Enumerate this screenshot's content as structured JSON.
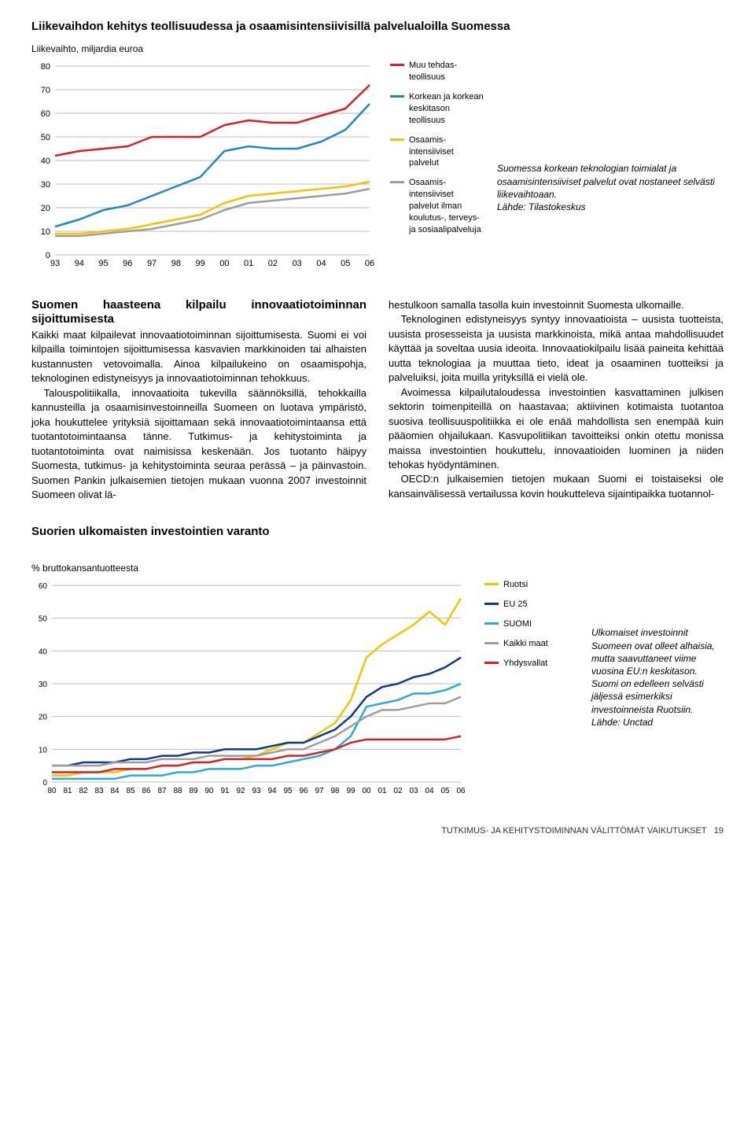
{
  "chart1": {
    "title": "Liikevaihdon kehitys teollisuudessa ja osaamisintensiivisillä palvelualoilla Suomessa",
    "subtitle": "Liikevaihto, miljardia euroa",
    "type": "line",
    "ylim": [
      0,
      80
    ],
    "ytick_step": 10,
    "categories": [
      "93",
      "94",
      "95",
      "96",
      "97",
      "98",
      "99",
      "00",
      "01",
      "02",
      "03",
      "04",
      "05",
      "06"
    ],
    "background_color": "#ffffff",
    "grid_color": "#bdbdbd",
    "axis_fontsize": 11,
    "line_width": 2.5,
    "series": [
      {
        "name": "Muu tehdasteollisuus",
        "color": "#d61f26",
        "values": [
          42,
          44,
          45,
          46,
          50,
          50,
          50,
          55,
          57,
          56,
          56,
          59,
          62,
          72
        ]
      },
      {
        "name": "Korkean ja korkean keskitason teollisuus",
        "color": "#1e88c7",
        "values": [
          12,
          15,
          19,
          21,
          25,
          29,
          33,
          44,
          46,
          45,
          45,
          48,
          53,
          64
        ]
      },
      {
        "name": "Osaamisintensiiviset palvelut",
        "color": "#f4c400",
        "values": [
          9,
          9,
          10,
          11,
          13,
          15,
          17,
          22,
          25,
          26,
          27,
          28,
          29,
          31
        ]
      },
      {
        "name": "Osaamisintensiiviset palvelut ilman koulutus-, terveys- ja sosiaalipalveluja",
        "color": "#9e9e9e",
        "values": [
          8,
          8,
          9,
          10,
          11,
          13,
          15,
          19,
          22,
          23,
          24,
          25,
          26,
          28
        ]
      }
    ],
    "legend": [
      {
        "label": "Muu tehdas­teollisuus",
        "color": "#d61f26"
      },
      {
        "label": "Korkean ja korkean keskitason teollisuus",
        "color": "#1e88c7"
      },
      {
        "label": "Osaamis­intensiiviset palvelut",
        "color": "#f4c400"
      },
      {
        "label": "Osaamis­intensiiviset palvelut ilman koulutus-, terveys- ja sosiaali­palveluja",
        "color": "#9e9e9e"
      }
    ],
    "caption": "Suomessa korkean teknologian toimialat ja osaamisintensiiviset palvelut ovat nostaneet selvästi liikevaihtoaan.",
    "source": "Lähde: Tilastokeskus"
  },
  "article": {
    "heading": "Suomen haasteena kilpailu innovaatiotoiminnan sijoittumisesta",
    "col1_p1": "Kaikki maat kilpailevat innovaatiotoiminnan sijoittumisesta. Suomi ei voi kilpailla toimintojen sijoittumisessa kasvavien markkinoiden tai alhaisten kustannusten vetovoimalla. Ainoa kilpailukeino on osaamispohja, teknologinen edistyneisyys ja innovaatiotoiminnan tehokkuus.",
    "col1_p2": "Talouspolitiikalla, innovaatioita tukevilla säännöksillä, tehokkailla kannusteilla ja osaamisinvestoinneilla Suomeen on luotava ympäristö, joka houkuttelee yrityksiä sijoittamaan sekä innovaatiotoimintaansa että tuotantotoimintaansa tänne. Tutkimus- ja kehitystoiminta ja tuotantotoiminta ovat naimisissa keskenään. Jos tuotanto häipyy Suomesta, tutkimus- ja kehitystoiminta seuraa perässä – ja päinvastoin. Suomen Pankin julkaisemien tietojen mukaan vuonna 2007 investoinnit Suomeen olivat lä-",
    "col2_p1": "hestulkoon samalla tasolla kuin investoinnit Suomesta ulkomaille.",
    "col2_p2": "Teknologinen edistyneisyys syntyy innovaatioista – uusista tuotteista, uusista prosesseista ja uusista markkinoista, mikä antaa mahdollisuudet käyttää ja soveltaa uusia ideoita. Innovaatiokilpailu lisää paineita kehittää uutta teknologiaa ja muuttaa tieto, ideat ja osaaminen tuotteiksi ja palveluiksi, joita muilla yrityksillä ei vielä ole.",
    "col2_p3": "Avoimessa kilpailutaloudessa investointien kasvattaminen julkisen sektorin toimenpiteillä on haastavaa; aktiivinen kotimaista tuotantoa suosiva teollisuuspolitiikka ei ole enää mahdollista sen enempää kuin pääomien ohjailukaan. Kasvupolitiikan tavoitteiksi onkin otettu monissa maissa investointien houkuttelu, innovaatioiden luominen ja niiden tehokas hyödyntäminen.",
    "col2_p4": "OECD:n julkaisemien tietojen mukaan Suomi ei toistaiseksi ole kansainvälisessä vertailussa kovin houkutteleva sijaintipaikka tuotannol-"
  },
  "chart2": {
    "title": "Suorien ulkomaisten investointien varanto",
    "subtitle": "% bruttokansantuotteesta",
    "type": "line",
    "ylim": [
      0,
      60
    ],
    "ytick_step": 10,
    "categories": [
      "80",
      "81",
      "82",
      "83",
      "84",
      "85",
      "86",
      "87",
      "88",
      "89",
      "90",
      "91",
      "92",
      "93",
      "94",
      "95",
      "96",
      "97",
      "98",
      "99",
      "00",
      "01",
      "02",
      "03",
      "04",
      "05",
      "06"
    ],
    "background_color": "#ffffff",
    "grid_color": "#bdbdbd",
    "axis_fontsize": 10,
    "line_width": 2.5,
    "series": [
      {
        "name": "Ruotsi",
        "color": "#f4c400",
        "values": [
          2,
          2,
          3,
          3,
          3,
          4,
          4,
          5,
          5,
          6,
          6,
          7,
          7,
          8,
          10,
          12,
          12,
          15,
          18,
          25,
          38,
          42,
          45,
          48,
          52,
          48,
          56
        ]
      },
      {
        "name": "EU 25",
        "color": "#0b3a8a",
        "values": [
          5,
          5,
          6,
          6,
          6,
          7,
          7,
          8,
          8,
          9,
          9,
          10,
          10,
          10,
          11,
          12,
          12,
          14,
          16,
          20,
          26,
          29,
          30,
          32,
          33,
          35,
          38
        ]
      },
      {
        "name": "SUOMI",
        "color": "#29a9e0",
        "values": [
          1,
          1,
          1,
          1,
          1,
          2,
          2,
          2,
          3,
          3,
          4,
          4,
          4,
          5,
          5,
          6,
          7,
          8,
          10,
          14,
          23,
          24,
          25,
          27,
          27,
          28,
          30
        ]
      },
      {
        "name": "Kaikki maat",
        "color": "#9e9e9e",
        "values": [
          5,
          5,
          5,
          5,
          6,
          6,
          6,
          7,
          7,
          7,
          8,
          8,
          8,
          8,
          9,
          10,
          10,
          12,
          14,
          17,
          20,
          22,
          22,
          23,
          24,
          24,
          26
        ]
      },
      {
        "name": "Yhdysvallat",
        "color": "#d61f26",
        "values": [
          3,
          3,
          3,
          3,
          4,
          4,
          4,
          5,
          5,
          6,
          6,
          7,
          7,
          7,
          7,
          8,
          8,
          9,
          10,
          12,
          13,
          13,
          13,
          13,
          13,
          13,
          14
        ]
      }
    ],
    "legend": [
      {
        "label": "Ruotsi",
        "color": "#f4c400"
      },
      {
        "label": "EU 25",
        "color": "#0b3a8a"
      },
      {
        "label": "SUOMI",
        "color": "#29a9e0"
      },
      {
        "label": "Kaikki maat",
        "color": "#9e9e9e"
      },
      {
        "label": "Yhdysvallat",
        "color": "#d61f26"
      }
    ],
    "caption": "Ulkomaiset investoinnit Suomeen ovat olleet alhaisia, mutta saavuttaneet viime vuosina EU:n keskitason. Suomi on edelleen selvästi jäljessä esimerkiksi investoinneista Ruotsiin.",
    "source": "Lähde: Unctad"
  },
  "footer": {
    "text": "TUTKIMUS- JA KEHITYSTOIMINNAN VÄLITTÖMÄT VAIKUTUKSET",
    "page": "19"
  }
}
